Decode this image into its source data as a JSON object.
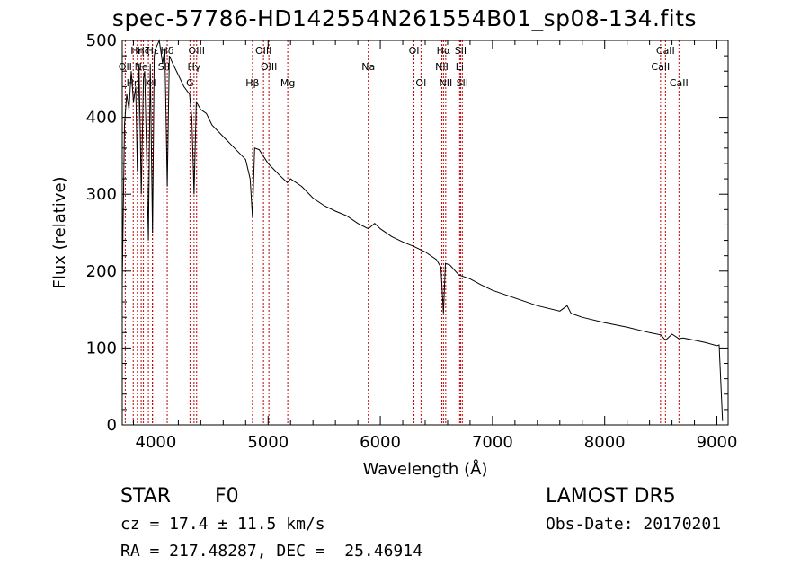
{
  "title": "spec-57786-HD142554N261554B01_sp08-134.fits",
  "footer": {
    "class_label": "STAR",
    "subclass": "F0",
    "survey": "LAMOST DR5",
    "cz": "cz = 17.4 ± 11.5 km/s",
    "obs_date": "Obs-Date: 20170201",
    "coords": "RA = 217.48287, DEC =  25.46914"
  },
  "chart_data": {
    "type": "line",
    "title": "spec-57786-HD142554N261554B01_sp08-134.fits",
    "xlabel": "Wavelength (Å)",
    "ylabel": "Flux (relative)",
    "xlim": [
      3700,
      9100
    ],
    "ylim": [
      0,
      500
    ],
    "xticks": [
      4000,
      5000,
      6000,
      7000,
      8000,
      9000
    ],
    "yticks": [
      0,
      100,
      200,
      300,
      400,
      500
    ],
    "line_color": "#000000",
    "marker_color": "#c00000",
    "series": [
      {
        "x": [
          3700,
          3720,
          3740,
          3760,
          3780,
          3800,
          3820,
          3835,
          3850,
          3870,
          3889,
          3900,
          3920,
          3933,
          3950,
          3970,
          3985,
          4000,
          4030,
          4060,
          4080,
          4101,
          4120,
          4150,
          4200,
          4250,
          4300,
          4320,
          4340,
          4360,
          4380,
          4400,
          4450,
          4500,
          4600,
          4700,
          4800,
          4840,
          4861,
          4880,
          4920,
          5000,
          5100,
          5172,
          5200,
          5300,
          5400,
          5500,
          5600,
          5700,
          5800,
          5893,
          5950,
          6000,
          6100,
          6200,
          6300,
          6400,
          6500,
          6540,
          6563,
          6580,
          6620,
          6700,
          6800,
          6900,
          7000,
          7200,
          7400,
          7600,
          7665,
          7700,
          7800,
          8000,
          8200,
          8400,
          8500,
          8542,
          8600,
          8662,
          8700,
          8800,
          8900,
          9000,
          9020,
          9050
        ],
        "y": [
          180,
          390,
          430,
          410,
          460,
          420,
          440,
          330,
          470,
          300,
          450,
          460,
          330,
          240,
          470,
          250,
          480,
          490,
          500,
          470,
          490,
          310,
          480,
          470,
          455,
          440,
          430,
          400,
          300,
          420,
          415,
          410,
          405,
          390,
          375,
          360,
          345,
          320,
          270,
          360,
          358,
          340,
          325,
          315,
          320,
          310,
          295,
          285,
          278,
          272,
          262,
          255,
          262,
          255,
          245,
          238,
          232,
          225,
          215,
          205,
          145,
          210,
          208,
          195,
          190,
          182,
          175,
          165,
          155,
          148,
          155,
          145,
          140,
          133,
          127,
          120,
          117,
          110,
          118,
          112,
          113,
          110,
          107,
          103,
          104,
          5
        ]
      }
    ],
    "line_markers": [
      {
        "x": 3727,
        "label": "OII",
        "row": 1
      },
      {
        "x": 3798,
        "label": "Hη",
        "row": 2
      },
      {
        "x": 3835,
        "label": "Hη",
        "row": 0
      },
      {
        "x": 3869,
        "label": "Ne",
        "row": 1
      },
      {
        "x": 3889,
        "label": "Hζ",
        "row": 0
      },
      {
        "x": 3933,
        "label": "K",
        "row": 2
      },
      {
        "x": 3969,
        "label": "H",
        "row": 2
      },
      {
        "x": 3970,
        "label": "Hε",
        "row": 0
      },
      {
        "x": 4072,
        "label": "SII",
        "row": 1
      },
      {
        "x": 4101,
        "label": "Hδ",
        "row": 0
      },
      {
        "x": 4304,
        "label": "G",
        "row": 2
      },
      {
        "x": 4340,
        "label": "Hγ",
        "row": 1
      },
      {
        "x": 4363,
        "label": "OIII",
        "row": 0
      },
      {
        "x": 4861,
        "label": "Hβ",
        "row": 2
      },
      {
        "x": 4959,
        "label": "OIII",
        "row": 0
      },
      {
        "x": 5007,
        "label": "OIII",
        "row": 1
      },
      {
        "x": 5175,
        "label": "Mg",
        "row": 2
      },
      {
        "x": 5893,
        "label": "Na",
        "row": 1
      },
      {
        "x": 6300,
        "label": "OI",
        "row": 0
      },
      {
        "x": 6363,
        "label": "OI",
        "row": 2
      },
      {
        "x": 6548,
        "label": "NII",
        "row": 1
      },
      {
        "x": 6563,
        "label": "Hα",
        "row": 0
      },
      {
        "x": 6583,
        "label": "NII",
        "row": 2
      },
      {
        "x": 6707,
        "label": "Li",
        "row": 1
      },
      {
        "x": 6716,
        "label": "SII",
        "row": 0
      },
      {
        "x": 6731,
        "label": "SII",
        "row": 2
      },
      {
        "x": 8498,
        "label": "CaII",
        "row": 1
      },
      {
        "x": 8542,
        "label": "CaII",
        "row": 0
      },
      {
        "x": 8662,
        "label": "CaII",
        "row": 2
      }
    ]
  }
}
